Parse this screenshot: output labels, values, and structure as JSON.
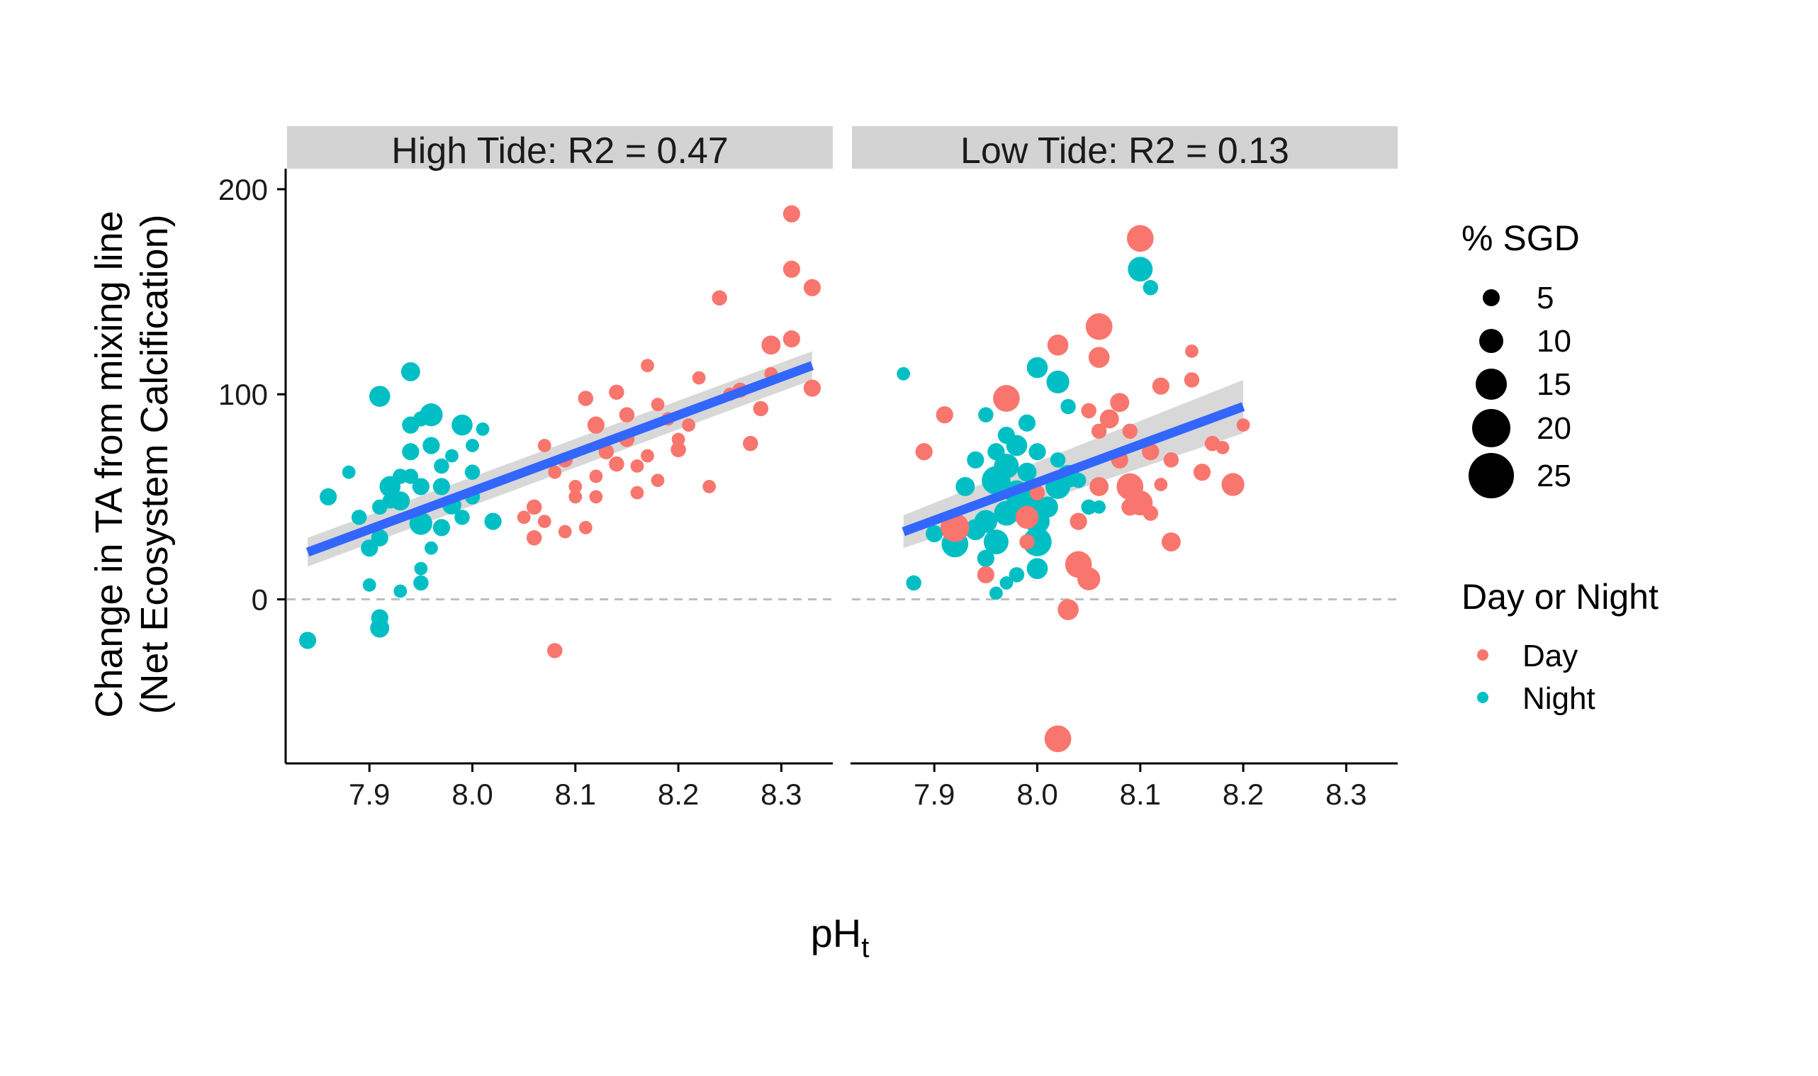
{
  "chart_data": {
    "type": "scatter",
    "xlabel": "pH",
    "xlabel_sub": "t",
    "ylabel_line1": "Change in TA from mixing line",
    "ylabel_line2": "(Net Ecosystem Calcification)",
    "xlim": [
      7.82,
      8.35
    ],
    "ylim": [
      -80,
      210
    ],
    "x_ticks": [
      7.9,
      8.0,
      8.1,
      8.2,
      8.3
    ],
    "x_tick_labels": [
      "7.9",
      "8.0",
      "8.1",
      "8.2",
      "8.3"
    ],
    "y_ticks": [
      0,
      100,
      200
    ],
    "y_tick_labels": [
      "0",
      "100",
      "200"
    ],
    "reference_line_y": 0,
    "colors": {
      "Day": "#F8766D",
      "Night": "#00BFC4",
      "fit": "#3366FF",
      "ribbon": "#BEBEBE",
      "strip": "#D3D3D3",
      "refline": "#BEBEBE"
    },
    "legend_size": {
      "title": "% SGD",
      "values": [
        5,
        10,
        15,
        20,
        25
      ],
      "labels": [
        "5",
        "10",
        "15",
        "20",
        "25"
      ]
    },
    "legend_color": {
      "title": "Day or Night",
      "labels": [
        "Day",
        "Night"
      ]
    },
    "panels": [
      {
        "title": "High Tide: R2 = 0.47",
        "fit": {
          "x": [
            7.84,
            8.33
          ],
          "y": [
            23,
            114
          ],
          "se": [
            7,
            7
          ]
        },
        "points": [
          [
            7.86,
            50,
            0,
            6
          ],
          [
            7.91,
            99,
            0,
            8
          ],
          [
            7.94,
            111,
            0,
            7
          ],
          [
            7.96,
            90,
            0,
            9
          ],
          [
            7.94,
            85,
            0,
            6
          ],
          [
            7.95,
            88,
            0,
            5
          ],
          [
            7.94,
            72,
            0,
            6
          ],
          [
            7.93,
            60,
            0,
            5
          ],
          [
            7.92,
            55,
            0,
            8
          ],
          [
            7.93,
            48,
            0,
            7
          ],
          [
            7.95,
            37,
            0,
            9
          ],
          [
            7.91,
            30,
            0,
            6
          ],
          [
            7.89,
            40,
            0,
            5
          ],
          [
            7.97,
            65,
            0,
            5
          ],
          [
            7.97,
            55,
            0,
            6
          ],
          [
            7.99,
            85,
            0,
            8
          ],
          [
            8.01,
            83,
            0,
            4
          ],
          [
            8.0,
            62,
            0,
            5
          ],
          [
            8.02,
            38,
            0,
            6
          ],
          [
            7.98,
            46,
            0,
            7
          ],
          [
            7.99,
            40,
            0,
            5
          ],
          [
            7.96,
            25,
            0,
            4
          ],
          [
            7.93,
            4,
            0,
            4
          ],
          [
            7.9,
            7,
            0,
            4
          ],
          [
            7.91,
            -9,
            0,
            6
          ],
          [
            7.91,
            -14,
            0,
            7
          ],
          [
            7.84,
            -20,
            0,
            6
          ],
          [
            7.96,
            75,
            0,
            6
          ],
          [
            8.0,
            50,
            0,
            5
          ],
          [
            7.95,
            55,
            0,
            6
          ],
          [
            7.92,
            48,
            0,
            5
          ],
          [
            7.97,
            35,
            0,
            6
          ],
          [
            7.9,
            25,
            0,
            6
          ],
          [
            7.94,
            60,
            0,
            5
          ],
          [
            7.98,
            70,
            0,
            4
          ],
          [
            7.95,
            15,
            0,
            4
          ],
          [
            7.95,
            8,
            0,
            5
          ],
          [
            7.88,
            62,
            0,
            4
          ],
          [
            8.0,
            75,
            0,
            4
          ],
          [
            7.91,
            45,
            0,
            5
          ],
          [
            8.31,
            188,
            1,
            6
          ],
          [
            8.31,
            161,
            1,
            6
          ],
          [
            8.33,
            152,
            1,
            6
          ],
          [
            8.24,
            147,
            1,
            5
          ],
          [
            8.29,
            124,
            1,
            7
          ],
          [
            8.31,
            127,
            1,
            6
          ],
          [
            8.33,
            103,
            1,
            6
          ],
          [
            8.29,
            110,
            1,
            4
          ],
          [
            8.22,
            108,
            1,
            4
          ],
          [
            8.17,
            114,
            1,
            4
          ],
          [
            8.11,
            98,
            1,
            5
          ],
          [
            8.14,
            101,
            1,
            5
          ],
          [
            8.18,
            95,
            1,
            4
          ],
          [
            8.21,
            85,
            1,
            4
          ],
          [
            8.26,
            102,
            1,
            5
          ],
          [
            8.28,
            93,
            1,
            5
          ],
          [
            8.27,
            76,
            1,
            5
          ],
          [
            8.12,
            85,
            1,
            6
          ],
          [
            8.15,
            78,
            1,
            5
          ],
          [
            8.17,
            70,
            1,
            4
          ],
          [
            8.13,
            72,
            1,
            5
          ],
          [
            8.09,
            68,
            1,
            5
          ],
          [
            8.1,
            55,
            1,
            4
          ],
          [
            8.08,
            62,
            1,
            4
          ],
          [
            8.06,
            45,
            1,
            5
          ],
          [
            8.07,
            38,
            1,
            4
          ],
          [
            8.06,
            30,
            1,
            5
          ],
          [
            8.09,
            33,
            1,
            4
          ],
          [
            8.11,
            35,
            1,
            4
          ],
          [
            8.18,
            58,
            1,
            4
          ],
          [
            8.16,
            65,
            1,
            4
          ],
          [
            8.23,
            55,
            1,
            4
          ],
          [
            8.2,
            78,
            1,
            4
          ],
          [
            8.1,
            50,
            1,
            4
          ],
          [
            8.14,
            66,
            1,
            5
          ],
          [
            8.05,
            40,
            1,
            4
          ],
          [
            8.08,
            -25,
            1,
            5
          ],
          [
            8.12,
            60,
            1,
            4
          ],
          [
            8.19,
            88,
            1,
            4
          ],
          [
            8.15,
            90,
            1,
            5
          ],
          [
            8.07,
            75,
            1,
            4
          ],
          [
            8.12,
            50,
            1,
            4
          ],
          [
            8.16,
            52,
            1,
            4
          ],
          [
            8.2,
            73,
            1,
            5
          ],
          [
            8.25,
            100,
            1,
            4
          ]
        ]
      },
      {
        "title": "Low Tide: R2 = 0.13",
        "fit": {
          "x": [
            7.87,
            8.2
          ],
          "y": [
            33,
            94
          ],
          "se": [
            8,
            13
          ]
        },
        "points": [
          [
            7.87,
            110,
            0,
            4
          ],
          [
            7.88,
            8,
            0,
            5
          ],
          [
            8.1,
            161,
            0,
            10
          ],
          [
            8.11,
            152,
            0,
            5
          ],
          [
            8.0,
            113,
            0,
            8
          ],
          [
            8.02,
            106,
            0,
            9
          ],
          [
            8.03,
            94,
            0,
            5
          ],
          [
            7.99,
            86,
            0,
            6
          ],
          [
            7.98,
            75,
            0,
            8
          ],
          [
            7.97,
            65,
            0,
            10
          ],
          [
            7.96,
            58,
            0,
            12
          ],
          [
            7.98,
            52,
            0,
            10
          ],
          [
            7.99,
            48,
            0,
            12
          ],
          [
            7.97,
            42,
            0,
            10
          ],
          [
            7.95,
            38,
            0,
            9
          ],
          [
            7.94,
            34,
            0,
            8
          ],
          [
            7.96,
            28,
            0,
            10
          ],
          [
            7.95,
            20,
            0,
            6
          ],
          [
            7.98,
            12,
            0,
            5
          ],
          [
            7.97,
            8,
            0,
            4
          ],
          [
            7.96,
            3,
            0,
            4
          ],
          [
            7.92,
            27,
            0,
            11
          ],
          [
            7.9,
            32,
            0,
            6
          ],
          [
            8.0,
            15,
            0,
            8
          ],
          [
            8.0,
            28,
            0,
            12
          ],
          [
            8.0,
            38,
            0,
            10
          ],
          [
            8.01,
            45,
            0,
            8
          ],
          [
            8.02,
            55,
            0,
            10
          ],
          [
            8.03,
            60,
            0,
            9
          ],
          [
            7.99,
            62,
            0,
            7
          ],
          [
            7.96,
            72,
            0,
            6
          ],
          [
            7.94,
            68,
            0,
            6
          ],
          [
            8.0,
            72,
            0,
            6
          ],
          [
            8.02,
            68,
            0,
            5
          ],
          [
            8.05,
            45,
            0,
            5
          ],
          [
            8.06,
            45,
            0,
            4
          ],
          [
            8.04,
            58,
            0,
            5
          ],
          [
            7.93,
            55,
            0,
            7
          ],
          [
            7.97,
            80,
            0,
            6
          ],
          [
            7.95,
            90,
            0,
            5
          ],
          [
            8.1,
            176,
            1,
            11
          ],
          [
            8.06,
            133,
            1,
            11
          ],
          [
            8.02,
            124,
            1,
            8
          ],
          [
            8.06,
            118,
            1,
            8
          ],
          [
            7.97,
            98,
            1,
            11
          ],
          [
            8.05,
            92,
            1,
            5
          ],
          [
            8.08,
            96,
            1,
            7
          ],
          [
            8.09,
            82,
            1,
            5
          ],
          [
            8.07,
            88,
            1,
            7
          ],
          [
            8.12,
            104,
            1,
            6
          ],
          [
            8.15,
            107,
            1,
            5
          ],
          [
            8.15,
            121,
            1,
            4
          ],
          [
            7.91,
            90,
            1,
            6
          ],
          [
            7.89,
            72,
            1,
            6
          ],
          [
            8.09,
            55,
            1,
            11
          ],
          [
            8.1,
            47,
            1,
            10
          ],
          [
            8.19,
            56,
            1,
            9
          ],
          [
            8.13,
            28,
            1,
            7
          ],
          [
            8.04,
            17,
            1,
            11
          ],
          [
            8.05,
            10,
            1,
            9
          ],
          [
            8.03,
            -5,
            1,
            8
          ],
          [
            8.02,
            -68,
            1,
            11
          ],
          [
            8.04,
            38,
            1,
            6
          ],
          [
            7.99,
            40,
            1,
            9
          ],
          [
            8.06,
            55,
            1,
            7
          ],
          [
            8.08,
            68,
            1,
            6
          ],
          [
            8.11,
            72,
            1,
            6
          ],
          [
            8.17,
            76,
            1,
            5
          ],
          [
            8.2,
            85,
            1,
            4
          ],
          [
            8.16,
            62,
            1,
            6
          ],
          [
            7.92,
            35,
            1,
            12
          ],
          [
            7.95,
            12,
            1,
            6
          ],
          [
            8.0,
            52,
            1,
            5
          ],
          [
            8.09,
            45,
            1,
            6
          ],
          [
            8.13,
            68,
            1,
            5
          ],
          [
            8.18,
            74,
            1,
            4
          ],
          [
            8.06,
            82,
            1,
            5
          ],
          [
            7.99,
            28,
            1,
            5
          ],
          [
            8.12,
            56,
            1,
            4
          ],
          [
            8.11,
            42,
            1,
            5
          ]
        ]
      }
    ]
  }
}
